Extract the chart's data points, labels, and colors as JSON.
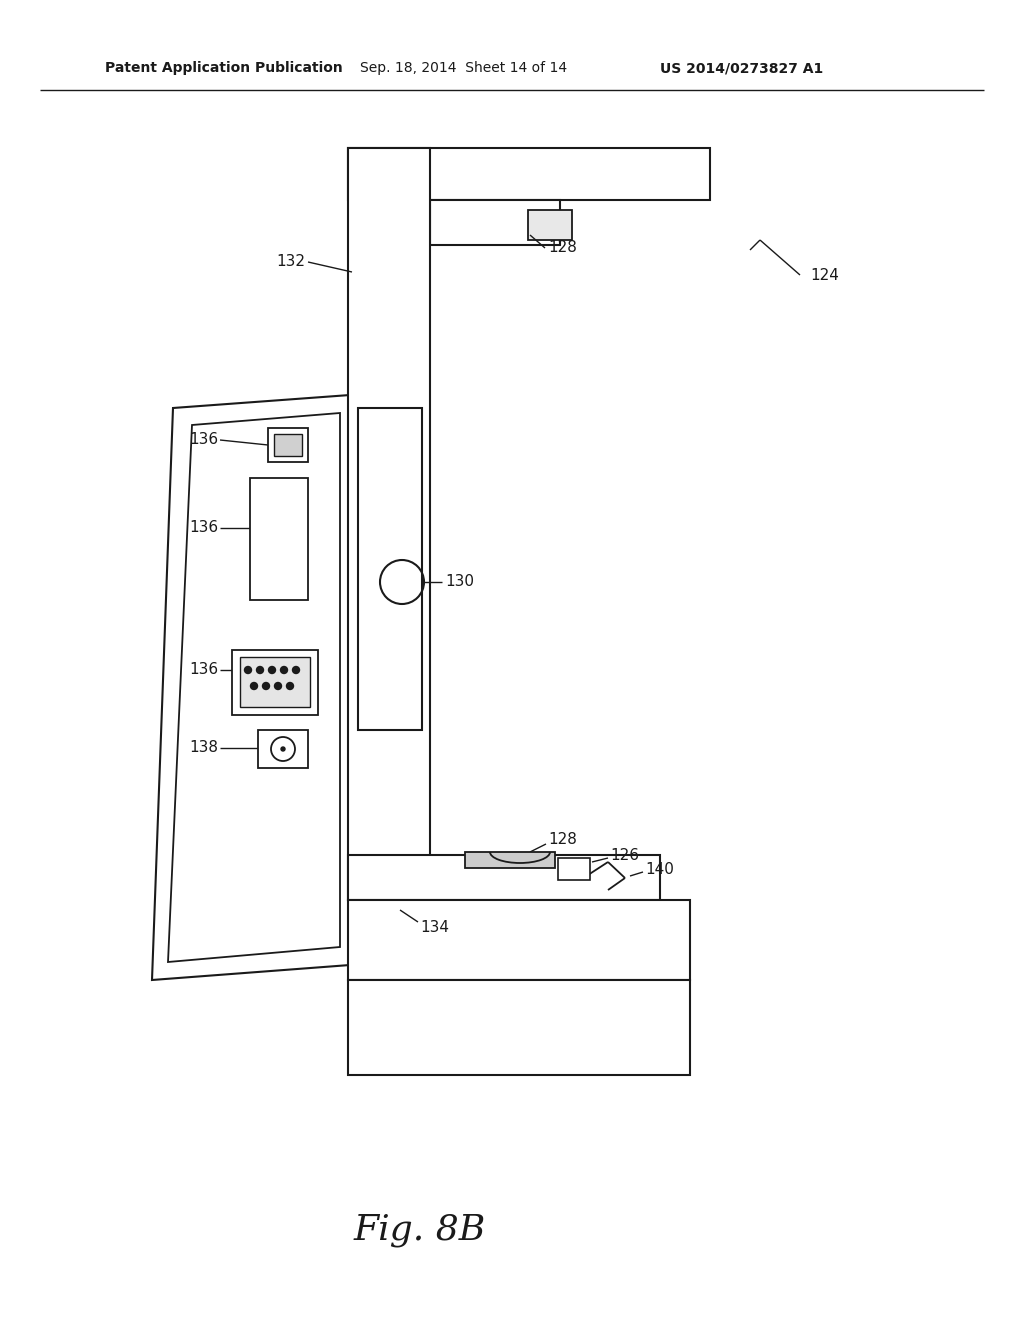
{
  "bg_color": "#ffffff",
  "line_color": "#1a1a1a",
  "header_left": "Patent Application Publication",
  "header_mid": "Sep. 18, 2014  Sheet 14 of 14",
  "header_right": "US 2014/0273827 A1",
  "fig_label": "Fig. 8B"
}
